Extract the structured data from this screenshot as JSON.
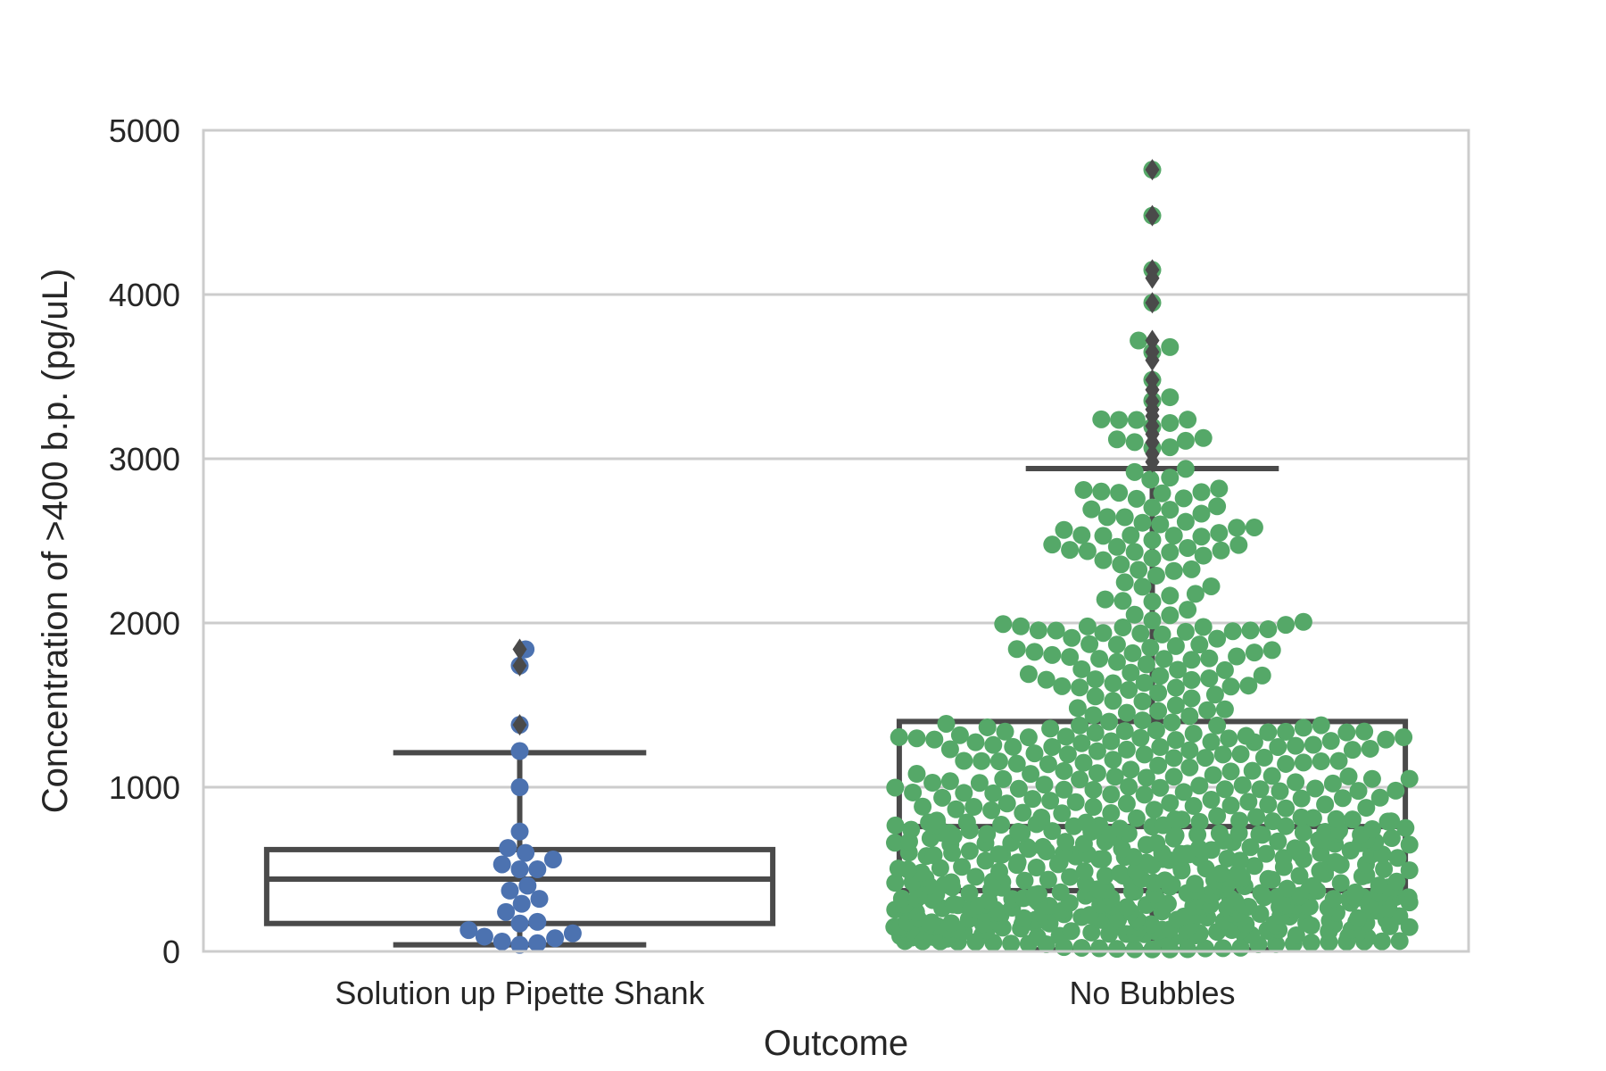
{
  "chart_data": {
    "type": "box-swarm",
    "xlabel": "Outcome",
    "ylabel": "Concentration of >400 b.p. (pg/uL)",
    "ylim": [
      0,
      5000
    ],
    "yticks": [
      0,
      1000,
      2000,
      3000,
      4000,
      5000
    ],
    "ytick_labels": [
      "0",
      "1000",
      "2000",
      "3000",
      "4000",
      "5000"
    ],
    "grid": "horizontal",
    "box_color": "#4a4a4a",
    "categories": [
      {
        "name": "Solution up Pipette Shank",
        "point_color": "#4c72b0",
        "box": {
          "whisker_low": 40,
          "q1": 170,
          "median": 440,
          "q3": 620,
          "whisker_high": 1210
        },
        "outliers": [
          1380,
          1740,
          1840
        ],
        "points": [
          1840,
          1740,
          1380,
          1220,
          1000,
          730,
          630,
          600,
          560,
          530,
          500,
          500,
          400,
          370,
          320,
          290,
          240,
          180,
          170,
          130,
          110,
          90,
          80,
          60,
          50,
          40
        ]
      },
      {
        "name": "No Bubbles",
        "point_color": "#55a868",
        "box": {
          "whisker_low": 10,
          "q1": 370,
          "median": 760,
          "q3": 1400,
          "whisker_high": 2940
        },
        "outliers": [
          2980,
          3030,
          3100,
          3150,
          3200,
          3260,
          3300,
          3350,
          3420,
          3480,
          3600,
          3650,
          3720,
          3950,
          4100,
          4150,
          4480,
          4760
        ],
        "points_summary": "dense swarm of roughly 750 points between 0 and 4760"
      }
    ]
  }
}
